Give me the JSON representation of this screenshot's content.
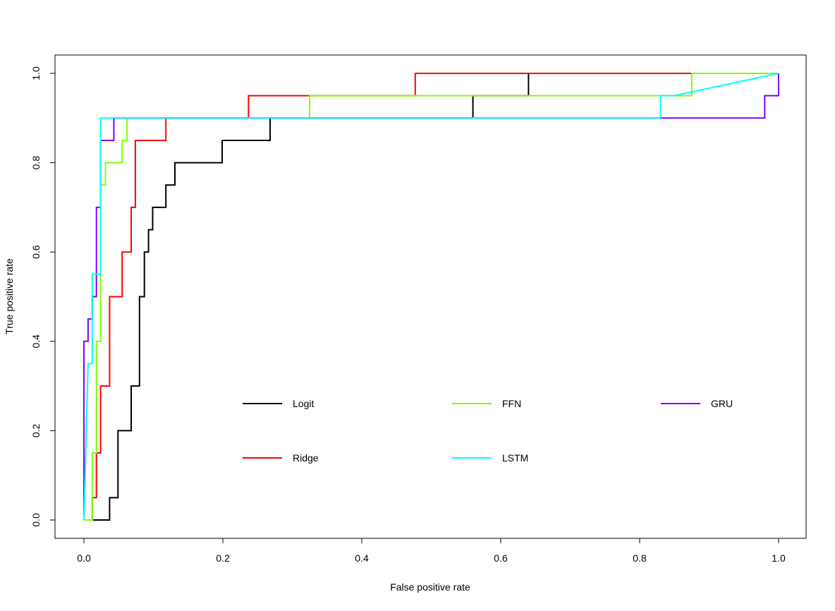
{
  "chart_data": {
    "type": "line",
    "title": "",
    "xlabel": "False positive rate",
    "ylabel": "True positive rate",
    "xlim": [
      0,
      1
    ],
    "ylim": [
      0,
      1
    ],
    "x_ticks": [
      "0.0",
      "0.2",
      "0.4",
      "0.6",
      "0.8",
      "1.0"
    ],
    "y_ticks": [
      "0.0",
      "0.2",
      "0.4",
      "0.6",
      "0.8",
      "1.0"
    ],
    "grid": false,
    "legend_position": "bottom-center",
    "series": [
      {
        "name": "Logit",
        "color": "#000000",
        "points": [
          [
            0,
            0
          ],
          [
            0.037,
            0
          ],
          [
            0.037,
            0.05
          ],
          [
            0.049,
            0.05
          ],
          [
            0.049,
            0.2
          ],
          [
            0.068,
            0.2
          ],
          [
            0.068,
            0.3
          ],
          [
            0.08,
            0.3
          ],
          [
            0.08,
            0.5
          ],
          [
            0.087,
            0.5
          ],
          [
            0.087,
            0.6
          ],
          [
            0.093,
            0.6
          ],
          [
            0.093,
            0.65
          ],
          [
            0.099,
            0.65
          ],
          [
            0.099,
            0.7
          ],
          [
            0.118,
            0.7
          ],
          [
            0.118,
            0.75
          ],
          [
            0.131,
            0.75
          ],
          [
            0.131,
            0.8
          ],
          [
            0.199,
            0.8
          ],
          [
            0.199,
            0.85
          ],
          [
            0.268,
            0.85
          ],
          [
            0.268,
            0.9
          ],
          [
            0.56,
            0.9
          ],
          [
            0.56,
            0.95
          ],
          [
            0.64,
            0.95
          ],
          [
            0.64,
            1.0
          ],
          [
            1.0,
            1.0
          ]
        ]
      },
      {
        "name": "Ridge",
        "color": "#ff0000",
        "points": [
          [
            0,
            0
          ],
          [
            0.012,
            0
          ],
          [
            0.012,
            0.05
          ],
          [
            0.018,
            0.05
          ],
          [
            0.018,
            0.15
          ],
          [
            0.024,
            0.15
          ],
          [
            0.024,
            0.3
          ],
          [
            0.037,
            0.3
          ],
          [
            0.037,
            0.5
          ],
          [
            0.055,
            0.5
          ],
          [
            0.055,
            0.6
          ],
          [
            0.068,
            0.6
          ],
          [
            0.068,
            0.7
          ],
          [
            0.074,
            0.7
          ],
          [
            0.074,
            0.85
          ],
          [
            0.118,
            0.85
          ],
          [
            0.118,
            0.9
          ],
          [
            0.237,
            0.9
          ],
          [
            0.237,
            0.95
          ],
          [
            0.477,
            0.95
          ],
          [
            0.477,
            1.0
          ],
          [
            1.0,
            1.0
          ]
        ]
      },
      {
        "name": "FFN",
        "color": "#7fff00",
        "points": [
          [
            0,
            0
          ],
          [
            0.012,
            0
          ],
          [
            0.012,
            0.15
          ],
          [
            0.018,
            0.15
          ],
          [
            0.018,
            0.4
          ],
          [
            0.024,
            0.4
          ],
          [
            0.024,
            0.75
          ],
          [
            0.031,
            0.75
          ],
          [
            0.031,
            0.8
          ],
          [
            0.055,
            0.8
          ],
          [
            0.055,
            0.85
          ],
          [
            0.062,
            0.85
          ],
          [
            0.062,
            0.9
          ],
          [
            0.325,
            0.9
          ],
          [
            0.325,
            0.95
          ],
          [
            0.875,
            0.95
          ],
          [
            0.875,
            1.0
          ],
          [
            1.0,
            1.0
          ]
        ]
      },
      {
        "name": "GRU",
        "color": "#8000ff",
        "points": [
          [
            0,
            0
          ],
          [
            0,
            0.4
          ],
          [
            0.006,
            0.4
          ],
          [
            0.006,
            0.45
          ],
          [
            0.012,
            0.45
          ],
          [
            0.012,
            0.5
          ],
          [
            0.018,
            0.5
          ],
          [
            0.018,
            0.7
          ],
          [
            0.024,
            0.7
          ],
          [
            0.024,
            0.85
          ],
          [
            0.043,
            0.85
          ],
          [
            0.043,
            0.9
          ],
          [
            0.98,
            0.9
          ],
          [
            0.98,
            0.95
          ],
          [
            1.0,
            0.95
          ],
          [
            1.0,
            1.0
          ]
        ]
      },
      {
        "name": "LSTM",
        "color": "#00ffff",
        "points": [
          [
            0,
            0
          ],
          [
            0.006,
            0.35
          ],
          [
            0.012,
            0.35
          ],
          [
            0.012,
            0.55
          ],
          [
            0.024,
            0.55
          ],
          [
            0.024,
            0.9
          ],
          [
            0.83,
            0.9
          ],
          [
            0.83,
            0.95
          ],
          [
            0.85,
            0.95
          ],
          [
            1.0,
            1.0
          ]
        ]
      }
    ],
    "legend": [
      {
        "name": "Logit",
        "color": "#000000"
      },
      {
        "name": "FFN",
        "color": "#7fff00"
      },
      {
        "name": "GRU",
        "color": "#8000ff"
      },
      {
        "name": "Ridge",
        "color": "#ff0000"
      },
      {
        "name": "LSTM",
        "color": "#00ffff"
      }
    ]
  }
}
